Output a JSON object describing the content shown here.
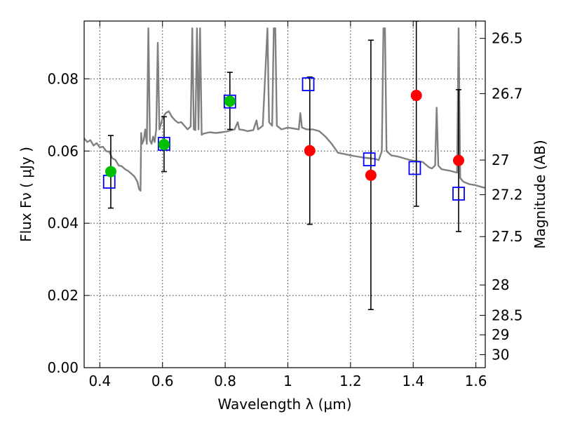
{
  "chart_data": {
    "type": "scatter",
    "title": "",
    "xlabel": "Wavelength  λ (μm)",
    "ylabel": "Flux  Fν  ( μJy )",
    "ylabel_right": "Magnitude (AB)",
    "xlim": [
      0.35,
      1.63
    ],
    "ylim": [
      0.0,
      0.096
    ],
    "grid": true,
    "x_ticks": [
      0.4,
      0.6,
      0.8,
      1.0,
      1.2,
      1.4,
      1.6
    ],
    "x_tick_labels": [
      "0.4",
      "0.6",
      "0.8",
      "1",
      "1.2",
      "1.4",
      "1.6"
    ],
    "y_ticks": [
      0.0,
      0.02,
      0.04,
      0.06,
      0.08
    ],
    "y_tick_labels": [
      "0.00",
      "0.02",
      "0.04",
      "0.06",
      "0.08"
    ],
    "right_ticks": [
      {
        "label": "26.5",
        "flux": 0.0912
      },
      {
        "label": "26.7",
        "flux": 0.0759
      },
      {
        "label": "27",
        "flux": 0.0575
      },
      {
        "label": "27.2",
        "flux": 0.0479
      },
      {
        "label": "27.5",
        "flux": 0.0363
      },
      {
        "label": "28",
        "flux": 0.0229
      },
      {
        "label": "28.5",
        "flux": 0.0145
      },
      {
        "label": "29",
        "flux": 0.0091
      },
      {
        "label": "30",
        "flux": 0.0036
      }
    ],
    "colors": {
      "model": "#808080",
      "observed": "#ff0000",
      "detected": "#00c000",
      "model_flux": "#0000ff",
      "errorbar": "#000000"
    },
    "series": [
      {
        "kind": "model-spectrum",
        "points": [
          [
            0.35,
            0.0635
          ],
          [
            0.36,
            0.0625
          ],
          [
            0.37,
            0.063
          ],
          [
            0.38,
            0.0615
          ],
          [
            0.39,
            0.0622
          ],
          [
            0.4,
            0.061
          ],
          [
            0.41,
            0.0612
          ],
          [
            0.42,
            0.06
          ],
          [
            0.43,
            0.0598
          ],
          [
            0.44,
            0.058
          ],
          [
            0.45,
            0.0575
          ],
          [
            0.46,
            0.056
          ],
          [
            0.47,
            0.0558
          ],
          [
            0.48,
            0.055
          ],
          [
            0.49,
            0.0545
          ],
          [
            0.5,
            0.0538
          ],
          [
            0.51,
            0.053
          ],
          [
            0.52,
            0.0515
          ],
          [
            0.525,
            0.0495
          ],
          [
            0.53,
            0.049
          ],
          [
            0.532,
            0.065
          ],
          [
            0.535,
            0.062
          ],
          [
            0.54,
            0.063
          ],
          [
            0.545,
            0.066
          ],
          [
            0.55,
            0.062
          ],
          [
            0.555,
            0.094
          ],
          [
            0.56,
            0.063
          ],
          [
            0.565,
            0.062
          ],
          [
            0.57,
            0.064
          ],
          [
            0.575,
            0.0625
          ],
          [
            0.58,
            0.066
          ],
          [
            0.585,
            0.09
          ],
          [
            0.59,
            0.066
          ],
          [
            0.6,
            0.069
          ],
          [
            0.61,
            0.0705
          ],
          [
            0.62,
            0.071
          ],
          [
            0.63,
            0.0695
          ],
          [
            0.64,
            0.0685
          ],
          [
            0.65,
            0.0678
          ],
          [
            0.66,
            0.068
          ],
          [
            0.67,
            0.067
          ],
          [
            0.68,
            0.066
          ],
          [
            0.69,
            0.0668
          ],
          [
            0.695,
            0.094
          ],
          [
            0.7,
            0.066
          ],
          [
            0.705,
            0.0658
          ],
          [
            0.71,
            0.094
          ],
          [
            0.715,
            0.066
          ],
          [
            0.72,
            0.094
          ],
          [
            0.725,
            0.0645
          ],
          [
            0.73,
            0.0648
          ],
          [
            0.75,
            0.0652
          ],
          [
            0.77,
            0.065
          ],
          [
            0.79,
            0.0652
          ],
          [
            0.81,
            0.0655
          ],
          [
            0.82,
            0.0658
          ],
          [
            0.83,
            0.066
          ],
          [
            0.84,
            0.068
          ],
          [
            0.845,
            0.066
          ],
          [
            0.86,
            0.0658
          ],
          [
            0.87,
            0.0655
          ],
          [
            0.89,
            0.0658
          ],
          [
            0.9,
            0.0685
          ],
          [
            0.905,
            0.066
          ],
          [
            0.92,
            0.067
          ],
          [
            0.935,
            0.094
          ],
          [
            0.94,
            0.068
          ],
          [
            0.95,
            0.067
          ],
          [
            0.955,
            0.094
          ],
          [
            0.96,
            0.094
          ],
          [
            0.965,
            0.067
          ],
          [
            0.98,
            0.066
          ],
          [
            1.0,
            0.0665
          ],
          [
            1.02,
            0.0662
          ],
          [
            1.035,
            0.066
          ],
          [
            1.04,
            0.0705
          ],
          [
            1.045,
            0.0665
          ],
          [
            1.06,
            0.066
          ],
          [
            1.08,
            0.066
          ],
          [
            1.1,
            0.0655
          ],
          [
            1.12,
            0.064
          ],
          [
            1.14,
            0.062
          ],
          [
            1.16,
            0.0595
          ],
          [
            1.18,
            0.0592
          ],
          [
            1.2,
            0.0588
          ],
          [
            1.22,
            0.0585
          ],
          [
            1.24,
            0.0582
          ],
          [
            1.26,
            0.058
          ],
          [
            1.28,
            0.0578
          ],
          [
            1.29,
            0.0575
          ],
          [
            1.3,
            0.06
          ],
          [
            1.305,
            0.094
          ],
          [
            1.31,
            0.094
          ],
          [
            1.315,
            0.06
          ],
          [
            1.33,
            0.0588
          ],
          [
            1.35,
            0.0585
          ],
          [
            1.37,
            0.058
          ],
          [
            1.39,
            0.0575
          ],
          [
            1.41,
            0.0572
          ],
          [
            1.43,
            0.057
          ],
          [
            1.45,
            0.0555
          ],
          [
            1.46,
            0.0552
          ],
          [
            1.47,
            0.056
          ],
          [
            1.475,
            0.072
          ],
          [
            1.48,
            0.056
          ],
          [
            1.49,
            0.055
          ],
          [
            1.5,
            0.0548
          ],
          [
            1.52,
            0.0545
          ],
          [
            1.54,
            0.054
          ],
          [
            1.545,
            0.094
          ],
          [
            1.55,
            0.0525
          ],
          [
            1.56,
            0.0515
          ],
          [
            1.58,
            0.0508
          ],
          [
            1.6,
            0.0505
          ],
          [
            1.62,
            0.05
          ],
          [
            1.63,
            0.0498
          ]
        ]
      },
      {
        "kind": "model-flux",
        "marker": "square",
        "points": [
          [
            0.43,
            0.0515
          ],
          [
            0.605,
            0.062
          ],
          [
            0.815,
            0.0737
          ],
          [
            1.065,
            0.0785
          ],
          [
            1.26,
            0.0577
          ],
          [
            1.405,
            0.0553
          ],
          [
            1.545,
            0.0482
          ]
        ]
      },
      {
        "kind": "observed",
        "marker": "circle",
        "points": [
          {
            "x": 0.435,
            "y": 0.0543,
            "yerr_low": 0.0442,
            "yerr_high": 0.0643,
            "color": "detected"
          },
          {
            "x": 0.605,
            "y": 0.0618,
            "yerr_low": 0.0543,
            "yerr_high": 0.0695,
            "color": "detected"
          },
          {
            "x": 0.815,
            "y": 0.0738,
            "yerr_low": 0.066,
            "yerr_high": 0.0818,
            "color": "detected"
          },
          {
            "x": 1.07,
            "y": 0.0601,
            "yerr_low": 0.0397,
            "yerr_high": 0.0805,
            "color": "observed"
          },
          {
            "x": 1.265,
            "y": 0.0533,
            "yerr_low": 0.0161,
            "yerr_high": 0.0907,
            "color": "observed"
          },
          {
            "x": 1.41,
            "y": 0.0754,
            "yerr_low": 0.0447,
            "yerr_high": 0.096,
            "color": "observed"
          },
          {
            "x": 1.545,
            "y": 0.0574,
            "yerr_low": 0.0377,
            "yerr_high": 0.077,
            "color": "observed"
          }
        ]
      }
    ]
  }
}
